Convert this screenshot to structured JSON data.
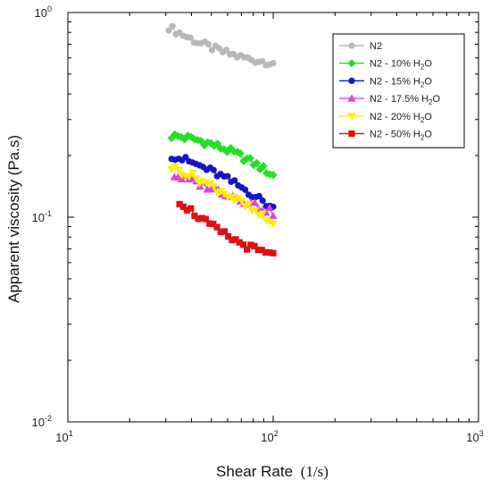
{
  "chart_data": {
    "type": "scatter",
    "x_scale": "log",
    "y_scale": "log",
    "xlim": [
      10,
      1000
    ],
    "ylim": [
      0.01,
      1
    ],
    "xlabel": "Shear Rate",
    "xlabel_unit": "(1/s)",
    "ylabel": "Apparent viscosity (Pa.s)",
    "x_ticks": [
      {
        "base": "10",
        "exp": "1",
        "value": 10
      },
      {
        "base": "10",
        "exp": "2",
        "value": 100
      },
      {
        "base": "10",
        "exp": "3",
        "value": 1000
      }
    ],
    "y_ticks": [
      {
        "base": "10",
        "exp": "-2",
        "value": 0.01
      },
      {
        "base": "10",
        "exp": "-1",
        "value": 0.1
      },
      {
        "base": "10",
        "exp": "0",
        "value": 1
      }
    ],
    "grid": false,
    "legend_position": "top-right",
    "series": [
      {
        "name": "N2",
        "legend_main": "N2",
        "legend_sub": "",
        "legend_tail": "",
        "color": "#b8b8b8",
        "marker": "circle",
        "start": [
          31,
          0.85
        ],
        "mid": [
          55,
          0.65
        ],
        "end": [
          100,
          0.57
        ],
        "count": 30
      },
      {
        "name": "N2 - 10% H2O",
        "legend_main": "N2 - 10% H",
        "legend_sub": "2",
        "legend_tail": "O",
        "color": "#22e022",
        "marker": "diamond",
        "start": [
          32,
          0.25
        ],
        "mid": [
          55,
          0.22
        ],
        "end": [
          100,
          0.16
        ],
        "count": 32
      },
      {
        "name": "N2 - 15% H2O",
        "legend_main": "N2 - 15% H",
        "legend_sub": "2",
        "legend_tail": "O",
        "color": "#1414c8",
        "marker": "circle",
        "start": [
          32,
          0.2
        ],
        "mid": [
          55,
          0.16
        ],
        "end": [
          100,
          0.11
        ],
        "count": 30
      },
      {
        "name": "N2 - 17.5% H2O",
        "legend_main": "N2 - 17.5% H",
        "legend_sub": "2",
        "legend_tail": "O",
        "color": "#e040e0",
        "marker": "triangle-up",
        "start": [
          33,
          0.16
        ],
        "mid": [
          60,
          0.13
        ],
        "end": [
          100,
          0.105
        ],
        "count": 28
      },
      {
        "name": "N2 - 20% H2O",
        "legend_main": "N2 - 20% H",
        "legend_sub": "2",
        "legend_tail": "O",
        "color": "#ffee00",
        "marker": "triangle-down",
        "start": [
          32,
          0.175
        ],
        "mid": [
          55,
          0.135
        ],
        "end": [
          100,
          0.092
        ],
        "count": 30
      },
      {
        "name": "N2 - 50% H2O",
        "legend_main": "N2 - 50% H",
        "legend_sub": "2",
        "legend_tail": "O",
        "color": "#e01010",
        "marker": "square",
        "start": [
          35,
          0.12
        ],
        "mid": [
          55,
          0.085
        ],
        "end": [
          100,
          0.065
        ],
        "count": 26
      }
    ]
  }
}
